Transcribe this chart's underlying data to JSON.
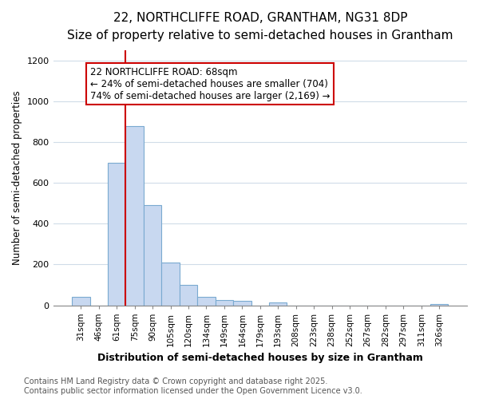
{
  "title_line1": "22, NORTHCLIFFE ROAD, GRANTHAM, NG31 8DP",
  "title_line2": "Size of property relative to semi-detached houses in Grantham",
  "xlabel": "Distribution of semi-detached houses by size in Grantham",
  "ylabel": "Number of semi-detached properties",
  "categories": [
    "31sqm",
    "46sqm",
    "61sqm",
    "75sqm",
    "90sqm",
    "105sqm",
    "120sqm",
    "134sqm",
    "149sqm",
    "164sqm",
    "179sqm",
    "193sqm",
    "208sqm",
    "223sqm",
    "238sqm",
    "252sqm",
    "267sqm",
    "282sqm",
    "297sqm",
    "311sqm",
    "326sqm"
  ],
  "values": [
    40,
    0,
    700,
    880,
    490,
    210,
    100,
    40,
    25,
    20,
    0,
    15,
    0,
    0,
    0,
    0,
    0,
    0,
    0,
    0,
    5
  ],
  "bar_color": "#c8d8f0",
  "bar_edge_color": "#7aaad0",
  "annotation_title": "22 NORTHCLIFFE ROAD: 68sqm",
  "annotation_line2": "← 24% of semi-detached houses are smaller (704)",
  "annotation_line3": "74% of semi-detached houses are larger (2,169) →",
  "annotation_box_color": "#cc0000",
  "vline_color": "#cc0000",
  "vline_x": 2.5,
  "ylim": [
    0,
    1250
  ],
  "yticks": [
    0,
    200,
    400,
    600,
    800,
    1000,
    1200
  ],
  "footer_line1": "Contains HM Land Registry data © Crown copyright and database right 2025.",
  "footer_line2": "Contains public sector information licensed under the Open Government Licence v3.0.",
  "bg_color": "#ffffff",
  "grid_color": "#d0dce8",
  "title_fontsize": 11,
  "subtitle_fontsize": 9.5,
  "ann_fontsize": 8.5,
  "footer_fontsize": 7
}
